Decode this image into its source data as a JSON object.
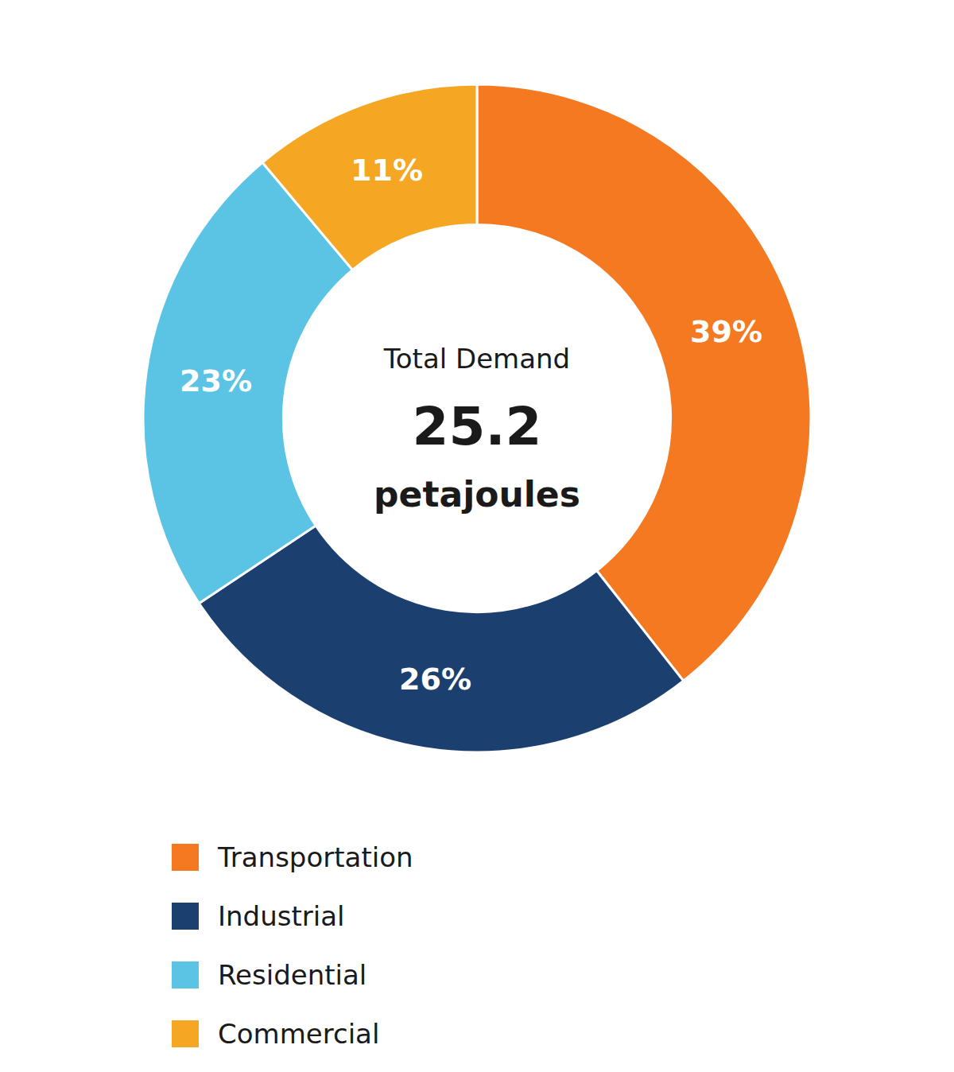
{
  "chart_data": {
    "type": "pie",
    "categories": [
      "Transportation",
      "Industrial",
      "Residential",
      "Commercial"
    ],
    "values": [
      39,
      26,
      23,
      11
    ],
    "value_labels": [
      "39%",
      "26%",
      "23%",
      "11%"
    ],
    "colors": [
      "#F47920",
      "#1B3F6E",
      "#5BC4E5",
      "#F5A623"
    ],
    "annotations": [
      "Total Demand",
      "25.2",
      "petajoules"
    ],
    "data_labels": true,
    "legend": "bottom"
  }
}
